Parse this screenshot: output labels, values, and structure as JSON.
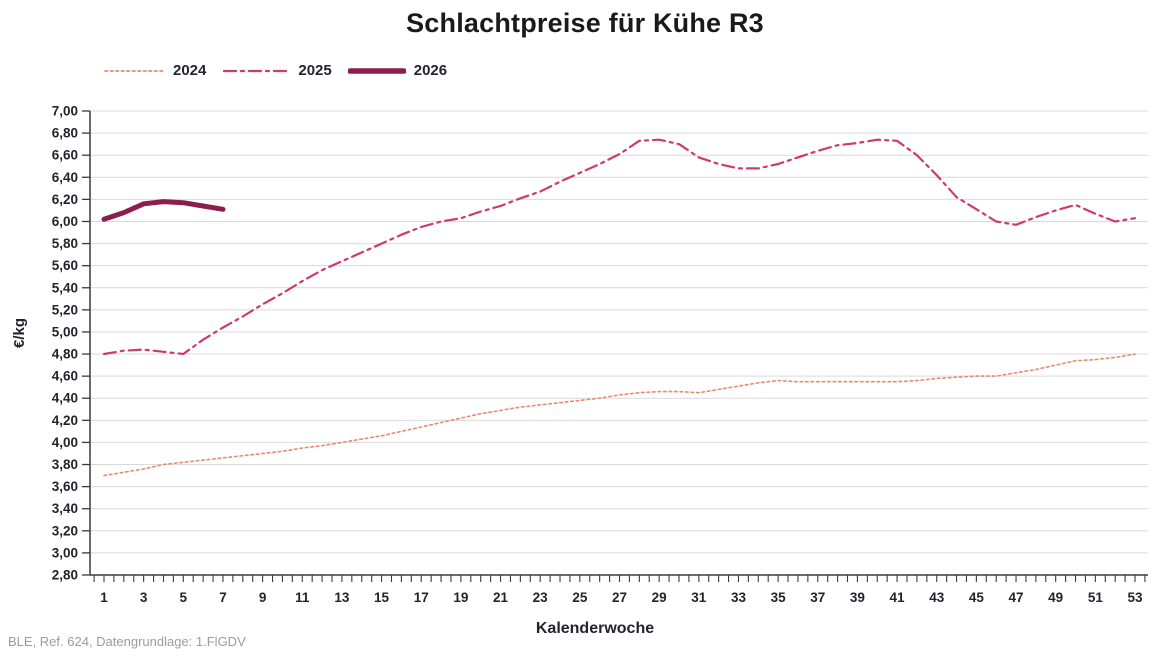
{
  "source_note": "BLE, Ref. 624, Datengrundlage: 1.FlGDV",
  "chart_data": {
    "type": "line",
    "title": "Schlachtpreise für Kühe R3",
    "xlabel": "Kalenderwoche",
    "ylabel": "€/kg",
    "ylim": [
      2.8,
      7.0
    ],
    "ytick_step": 0.2,
    "xlim": [
      1,
      53
    ],
    "xtick_label_interval": 2,
    "grid": "horizontal",
    "legend_position": "top-left",
    "decimal_separator": ",",
    "axis_text_color": "#23232e",
    "gridline_color": "#d9d9d9",
    "series": [
      {
        "name": "2024",
        "style": "dotted",
        "color": "#E9896F",
        "width": 1.6,
        "dash": "2.5 3",
        "legend_width": 1.8,
        "x": [
          1,
          2,
          3,
          4,
          5,
          6,
          7,
          8,
          9,
          10,
          11,
          12,
          13,
          14,
          15,
          16,
          17,
          18,
          19,
          20,
          21,
          22,
          23,
          24,
          25,
          26,
          27,
          28,
          29,
          30,
          31,
          32,
          33,
          34,
          35,
          36,
          37,
          38,
          39,
          40,
          41,
          42,
          43,
          44,
          45,
          46,
          47,
          48,
          49,
          50,
          51,
          52,
          53
        ],
        "values": [
          3.7,
          3.73,
          3.76,
          3.8,
          3.82,
          3.84,
          3.86,
          3.88,
          3.9,
          3.92,
          3.95,
          3.97,
          4.0,
          4.03,
          4.06,
          4.1,
          4.14,
          4.18,
          4.22,
          4.26,
          4.29,
          4.32,
          4.34,
          4.36,
          4.38,
          4.4,
          4.43,
          4.45,
          4.46,
          4.46,
          4.45,
          4.48,
          4.51,
          4.54,
          4.56,
          4.55,
          4.55,
          4.55,
          4.55,
          4.55,
          4.55,
          4.56,
          4.58,
          4.59,
          4.6,
          4.6,
          4.63,
          4.66,
          4.7,
          4.74,
          4.75,
          4.77,
          4.8
        ]
      },
      {
        "name": "2025",
        "style": "dash-dot",
        "color": "#CE3A6D",
        "width": 2.2,
        "dash": "12 5 3 5",
        "legend_width": 2.2,
        "x": [
          1,
          2,
          3,
          4,
          5,
          6,
          7,
          8,
          9,
          10,
          11,
          12,
          13,
          14,
          15,
          16,
          17,
          18,
          19,
          20,
          21,
          22,
          23,
          24,
          25,
          26,
          27,
          28,
          29,
          30,
          31,
          32,
          33,
          34,
          35,
          36,
          37,
          38,
          39,
          40,
          41,
          42,
          43,
          44,
          45,
          46,
          47,
          48,
          49,
          50,
          51,
          52,
          53
        ],
        "values": [
          4.8,
          4.83,
          4.84,
          4.82,
          4.8,
          4.93,
          5.04,
          5.14,
          5.25,
          5.35,
          5.46,
          5.56,
          5.64,
          5.72,
          5.8,
          5.88,
          5.95,
          6.0,
          6.03,
          6.09,
          6.14,
          6.21,
          6.27,
          6.36,
          6.44,
          6.52,
          6.61,
          6.73,
          6.74,
          6.7,
          6.58,
          6.52,
          6.48,
          6.48,
          6.52,
          6.58,
          6.64,
          6.69,
          6.71,
          6.74,
          6.73,
          6.6,
          6.42,
          6.22,
          6.11,
          6.0,
          5.97,
          6.04,
          6.1,
          6.15,
          6.07,
          6.0,
          6.03
        ]
      },
      {
        "name": "2026",
        "style": "solid",
        "color": "#8B1E50",
        "width": 5,
        "dash": "",
        "legend_width": 5.5,
        "x": [
          1,
          2,
          3,
          4,
          5,
          6,
          7
        ],
        "values": [
          6.02,
          6.08,
          6.16,
          6.18,
          6.17,
          6.14,
          6.11
        ]
      }
    ]
  }
}
